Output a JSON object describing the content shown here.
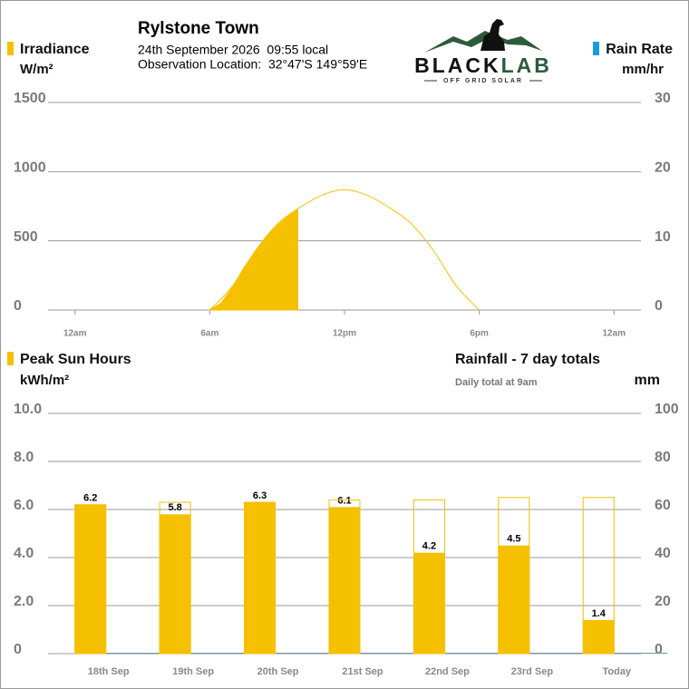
{
  "header": {
    "title": "Rylstone Town",
    "datetime": "24th September 2026  09:55 local",
    "location": "Observation Location:  32°47'S 149°59'E"
  },
  "logo": {
    "brand_a": "BLACK",
    "brand_b": "LAB",
    "tagline": "OFF GRID SOLAR"
  },
  "chart_data": [
    {
      "type": "area",
      "y_label": "W/m²",
      "y2_label": "mm/hr",
      "xlim": [
        -1.2,
        25.2
      ],
      "xticks": [
        {
          "value": 0,
          "label": "12am"
        },
        {
          "value": 6,
          "label": "6am"
        },
        {
          "value": 12,
          "label": "12pm"
        },
        {
          "value": 18,
          "label": "6pm"
        },
        {
          "value": 24,
          "label": "12am"
        }
      ],
      "ylim": [
        0,
        1500
      ],
      "yticks": [
        0,
        500,
        1000,
        1500
      ],
      "y2lim": [
        0,
        30
      ],
      "y2ticks": [
        0,
        10,
        20,
        30
      ],
      "grid": true,
      "series": [
        {
          "name": "Irradiance",
          "color": "#f5c000",
          "style": "area",
          "x": [
            6,
            6.5,
            7,
            7.5,
            8,
            8.5,
            9,
            9.5,
            9.92
          ],
          "values": [
            0,
            50,
            160,
            300,
            420,
            530,
            610,
            680,
            730
          ]
        },
        {
          "color": "#f5c000",
          "style": "line",
          "x": [
            6,
            7,
            8,
            9,
            10,
            11,
            12,
            13,
            14,
            15,
            16,
            17,
            18
          ],
          "values": [
            0,
            170,
            420,
            620,
            740,
            830,
            870,
            830,
            740,
            620,
            420,
            170,
            0
          ]
        },
        {
          "name": "Rain Rate",
          "color": "#1a9be0",
          "axis": "y2",
          "style": "line",
          "x": [],
          "values": []
        }
      ]
    },
    {
      "type": "bar",
      "y_label": "kWh/m²",
      "subtitle": "Daily total at 9am",
      "y2_label": "mm",
      "categories": [
        "18th Sep",
        "19th Sep",
        "20th Sep",
        "21st Sep",
        "22nd Sep",
        "23rd Sep",
        "Today"
      ],
      "ylim": [
        0,
        10
      ],
      "yticks": [
        0,
        {
          "value": 2,
          "label": "2.0"
        },
        {
          "value": 4,
          "label": "4.0"
        },
        {
          "value": 6,
          "label": "6.0"
        },
        {
          "value": 8,
          "label": "8.0"
        },
        {
          "value": 10,
          "label": "10.0"
        }
      ],
      "y2lim": [
        0,
        100
      ],
      "y2ticks": [
        0,
        20,
        40,
        60,
        80,
        100
      ],
      "grid": true,
      "series": [
        {
          "name": "Peak Sun Hours",
          "color": "#f5c000",
          "style": "filled",
          "values": [
            6.2,
            5.8,
            6.3,
            6.1,
            4.2,
            4.5,
            1.4
          ]
        },
        {
          "color": "#f5c000",
          "style": "outline",
          "values": [
            6.2,
            6.3,
            6.3,
            6.4,
            6.4,
            6.5,
            6.5
          ]
        },
        {
          "name": "Rainfall - 7 day totals",
          "color": "#6f93a6",
          "axis": "y2",
          "style": "rain",
          "values": [
            0,
            0,
            0,
            0,
            0,
            0,
            0
          ]
        }
      ]
    }
  ]
}
